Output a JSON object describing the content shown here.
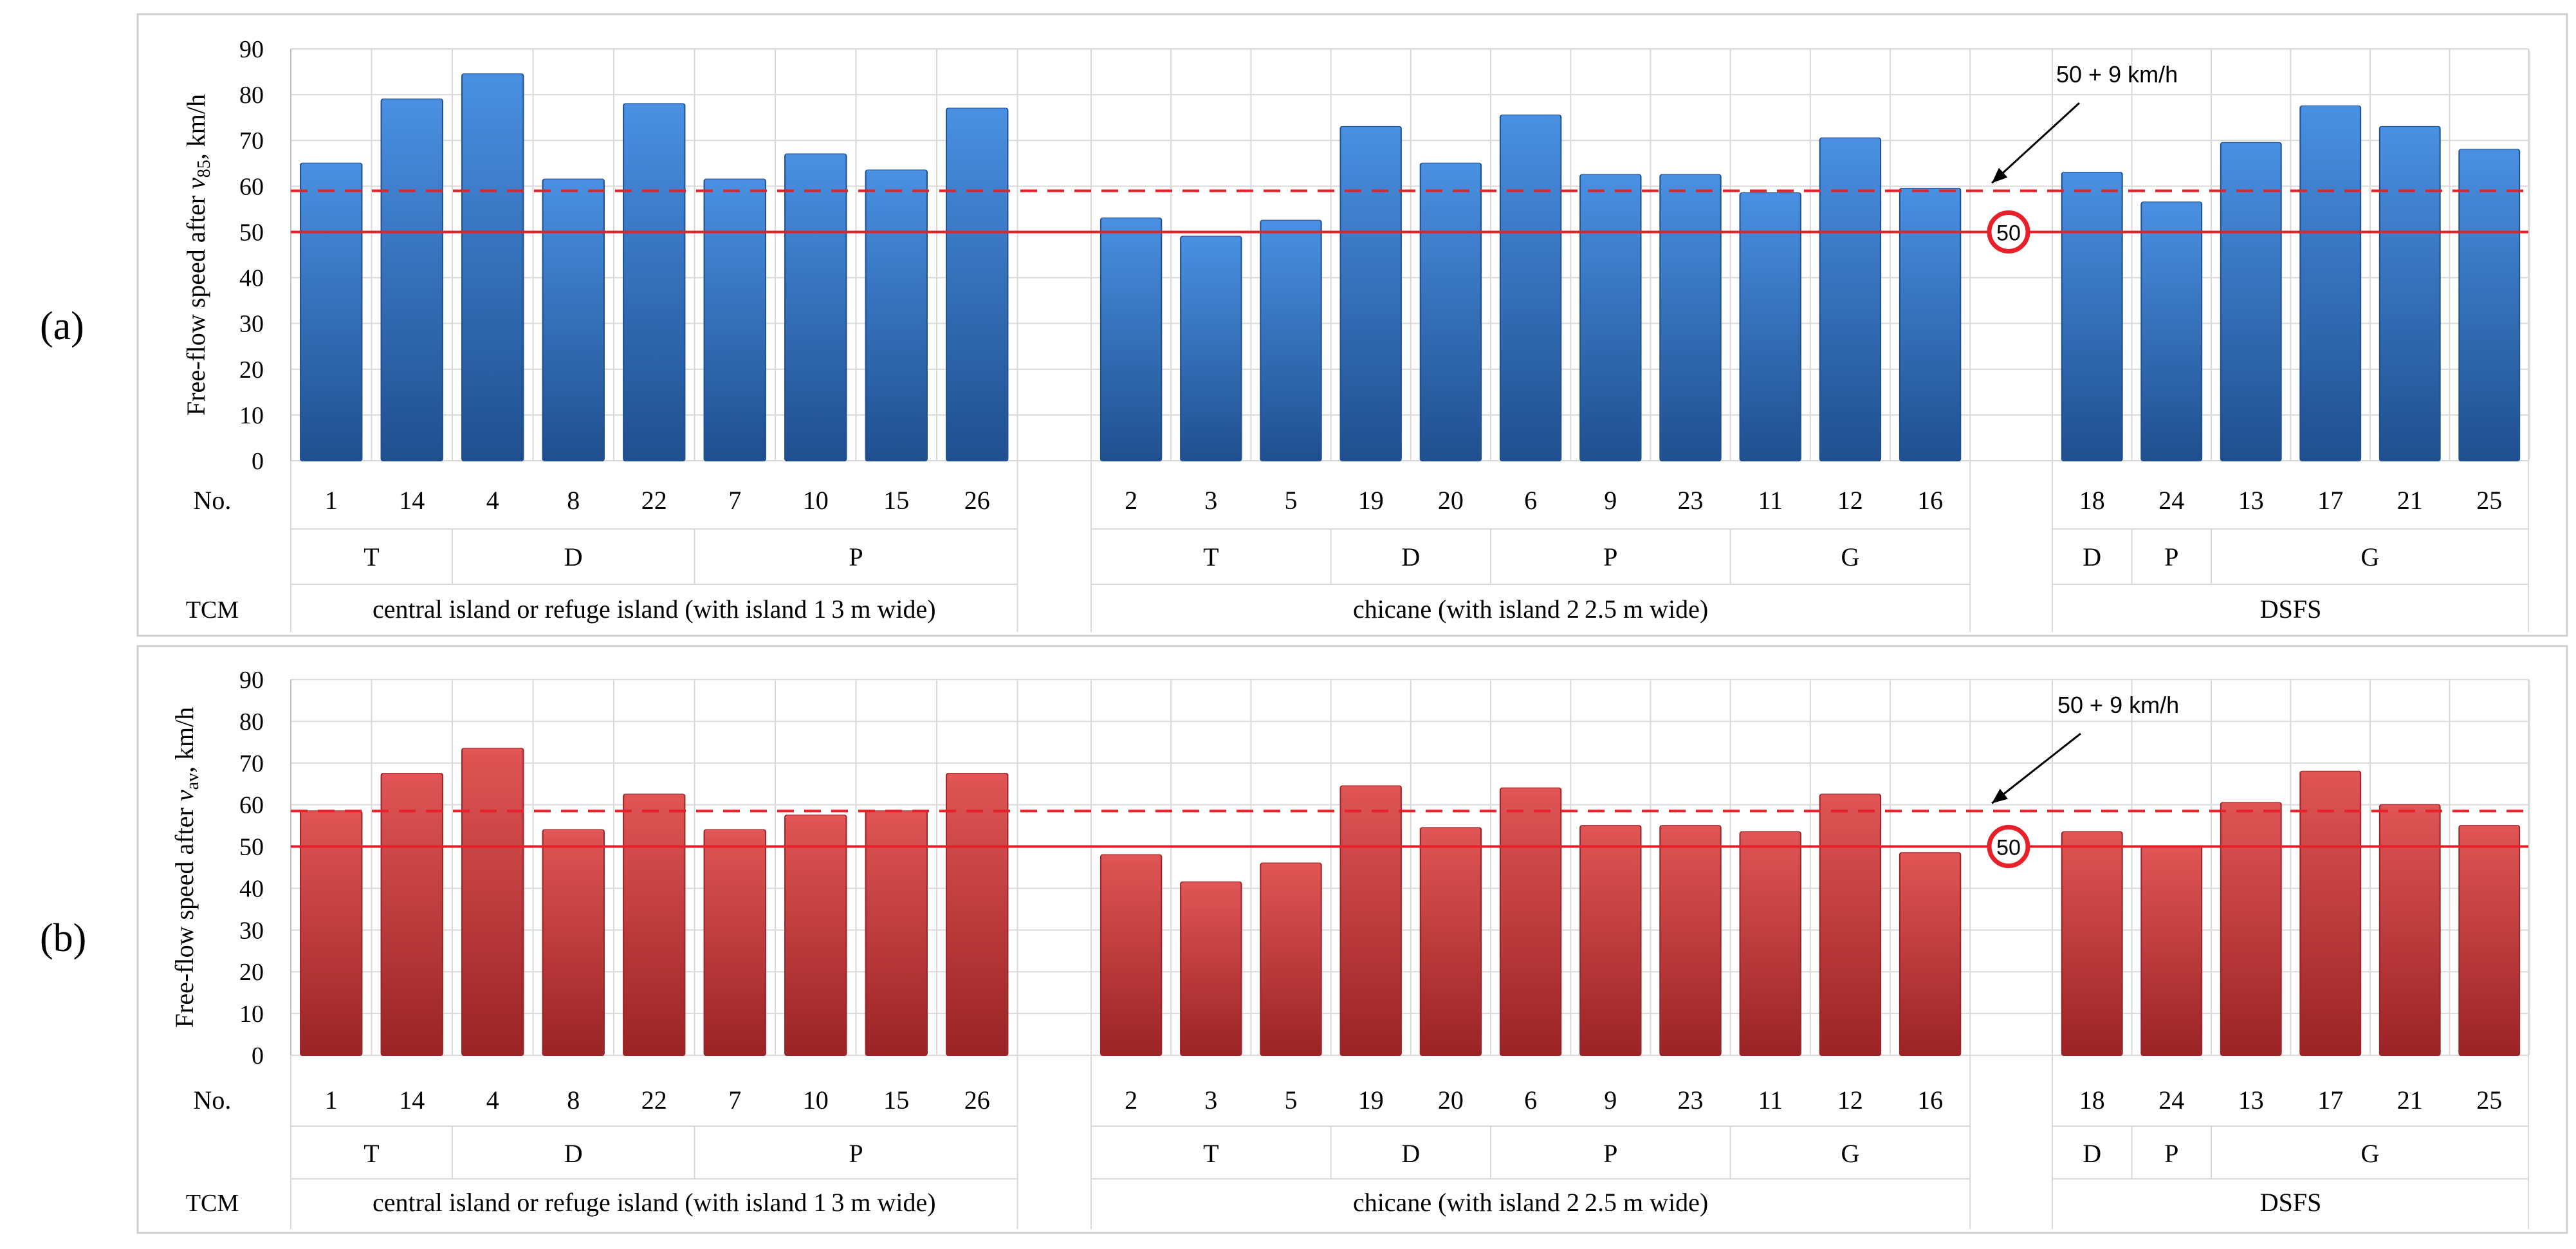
{
  "chart_data": [
    {
      "type": "bar",
      "panel_label": "(a)",
      "ylabel": "Free-flow speed after",
      "ylabel_var": "v",
      "ylabel_sub": "85",
      "ylabel_unit": ", km/h",
      "ylim": [
        0,
        90
      ],
      "yticks": [
        "0",
        "10",
        "20",
        "30",
        "40",
        "50",
        "60",
        "70",
        "80",
        "90"
      ],
      "grid": true,
      "bar_color": "#2f6fbe",
      "bar_gradient": [
        "#4a90e2",
        "#1f4f8f"
      ],
      "reference_lines": [
        {
          "value": 59,
          "style": "dashed",
          "color": "#e8202a",
          "label": "50 + 9 km/h"
        },
        {
          "value": 50,
          "style": "solid",
          "color": "#e8202a",
          "badge": "50"
        }
      ],
      "row_labels": {
        "no": "No.",
        "tcm": "TCM"
      },
      "groups": [
        {
          "name": "central island or refuge island (with island 1 3 m wide)",
          "subgroups": [
            {
              "label": "T",
              "bars": [
                {
                  "no": "1",
                  "value": 65
                },
                {
                  "no": "14",
                  "value": 79
                }
              ]
            },
            {
              "label": "D",
              "bars": [
                {
                  "no": "4",
                  "value": 84.5
                },
                {
                  "no": "8",
                  "value": 61.5
                },
                {
                  "no": "22",
                  "value": 78
                }
              ]
            },
            {
              "label": "P",
              "bars": [
                {
                  "no": "7",
                  "value": 61.5
                },
                {
                  "no": "10",
                  "value": 67
                },
                {
                  "no": "15",
                  "value": 63.5
                },
                {
                  "no": "26",
                  "value": 77
                }
              ]
            }
          ]
        },
        {
          "name": "chicane (with island 2 2.5 m wide)",
          "subgroups": [
            {
              "label": "T",
              "bars": [
                {
                  "no": "2",
                  "value": 53
                },
                {
                  "no": "3",
                  "value": 49
                },
                {
                  "no": "5",
                  "value": 52.5
                }
              ]
            },
            {
              "label": "D",
              "bars": [
                {
                  "no": "19",
                  "value": 73
                },
                {
                  "no": "20",
                  "value": 65
                }
              ]
            },
            {
              "label": "P",
              "bars": [
                {
                  "no": "6",
                  "value": 75.5
                },
                {
                  "no": "9",
                  "value": 62.5
                },
                {
                  "no": "23",
                  "value": 62.5
                }
              ]
            },
            {
              "label": "G",
              "bars": [
                {
                  "no": "11",
                  "value": 58.5
                },
                {
                  "no": "12",
                  "value": 70.5
                },
                {
                  "no": "16",
                  "value": 59.5
                }
              ]
            }
          ]
        },
        {
          "name": "DSFS",
          "subgroups": [
            {
              "label": "D",
              "bars": [
                {
                  "no": "18",
                  "value": 63
                }
              ]
            },
            {
              "label": "P",
              "bars": [
                {
                  "no": "24",
                  "value": 56.5
                }
              ]
            },
            {
              "label": "G",
              "bars": [
                {
                  "no": "13",
                  "value": 69.5
                },
                {
                  "no": "17",
                  "value": 77.5
                },
                {
                  "no": "21",
                  "value": 73
                },
                {
                  "no": "25",
                  "value": 68
                }
              ]
            }
          ]
        }
      ]
    },
    {
      "type": "bar",
      "panel_label": "(b)",
      "ylabel": "Free-flow speed after",
      "ylabel_var": "v",
      "ylabel_sub": "av",
      "ylabel_unit": ", km/h",
      "ylim": [
        0,
        90
      ],
      "yticks": [
        "0",
        "10",
        "20",
        "30",
        "40",
        "50",
        "60",
        "70",
        "80",
        "90"
      ],
      "grid": true,
      "bar_color": "#c8383a",
      "bar_gradient": [
        "#e05555",
        "#9a2325"
      ],
      "reference_lines": [
        {
          "value": 58.5,
          "style": "dashed",
          "color": "#e8202a",
          "label": "50 +  9 km/h"
        },
        {
          "value": 50,
          "style": "solid",
          "color": "#e8202a",
          "badge": "50"
        }
      ],
      "row_labels": {
        "no": "No.",
        "tcm": "TCM"
      },
      "groups": [
        {
          "name": "central island or refuge island (with island 1 3 m wide)",
          "subgroups": [
            {
              "label": "T",
              "bars": [
                {
                  "no": "1",
                  "value": 58.5
                },
                {
                  "no": "14",
                  "value": 67.5
                }
              ]
            },
            {
              "label": "D",
              "bars": [
                {
                  "no": "4",
                  "value": 73.5
                },
                {
                  "no": "8",
                  "value": 54
                },
                {
                  "no": "22",
                  "value": 62.5
                }
              ]
            },
            {
              "label": "P",
              "bars": [
                {
                  "no": "7",
                  "value": 54
                },
                {
                  "no": "10",
                  "value": 57.5
                },
                {
                  "no": "15",
                  "value": 58.5
                },
                {
                  "no": "26",
                  "value": 67.5
                }
              ]
            }
          ]
        },
        {
          "name": "chicane (with island 2 2.5 m wide)",
          "subgroups": [
            {
              "label": "T",
              "bars": [
                {
                  "no": "2",
                  "value": 48
                },
                {
                  "no": "3",
                  "value": 41.5
                },
                {
                  "no": "5",
                  "value": 46
                }
              ]
            },
            {
              "label": "D",
              "bars": [
                {
                  "no": "19",
                  "value": 64.5
                },
                {
                  "no": "20",
                  "value": 54.5
                }
              ]
            },
            {
              "label": "P",
              "bars": [
                {
                  "no": "6",
                  "value": 64
                },
                {
                  "no": "9",
                  "value": 55
                },
                {
                  "no": "23",
                  "value": 55
                }
              ]
            },
            {
              "label": "G",
              "bars": [
                {
                  "no": "11",
                  "value": 53.5
                },
                {
                  "no": "12",
                  "value": 62.5
                },
                {
                  "no": "16",
                  "value": 48.5
                }
              ]
            }
          ]
        },
        {
          "name": "DSFS",
          "subgroups": [
            {
              "label": "D",
              "bars": [
                {
                  "no": "18",
                  "value": 53.5
                }
              ]
            },
            {
              "label": "P",
              "bars": [
                {
                  "no": "24",
                  "value": 50
                }
              ]
            },
            {
              "label": "G",
              "bars": [
                {
                  "no": "13",
                  "value": 60.5
                },
                {
                  "no": "17",
                  "value": 68
                },
                {
                  "no": "21",
                  "value": 60
                },
                {
                  "no": "25",
                  "value": 55
                }
              ]
            }
          ]
        }
      ]
    }
  ]
}
